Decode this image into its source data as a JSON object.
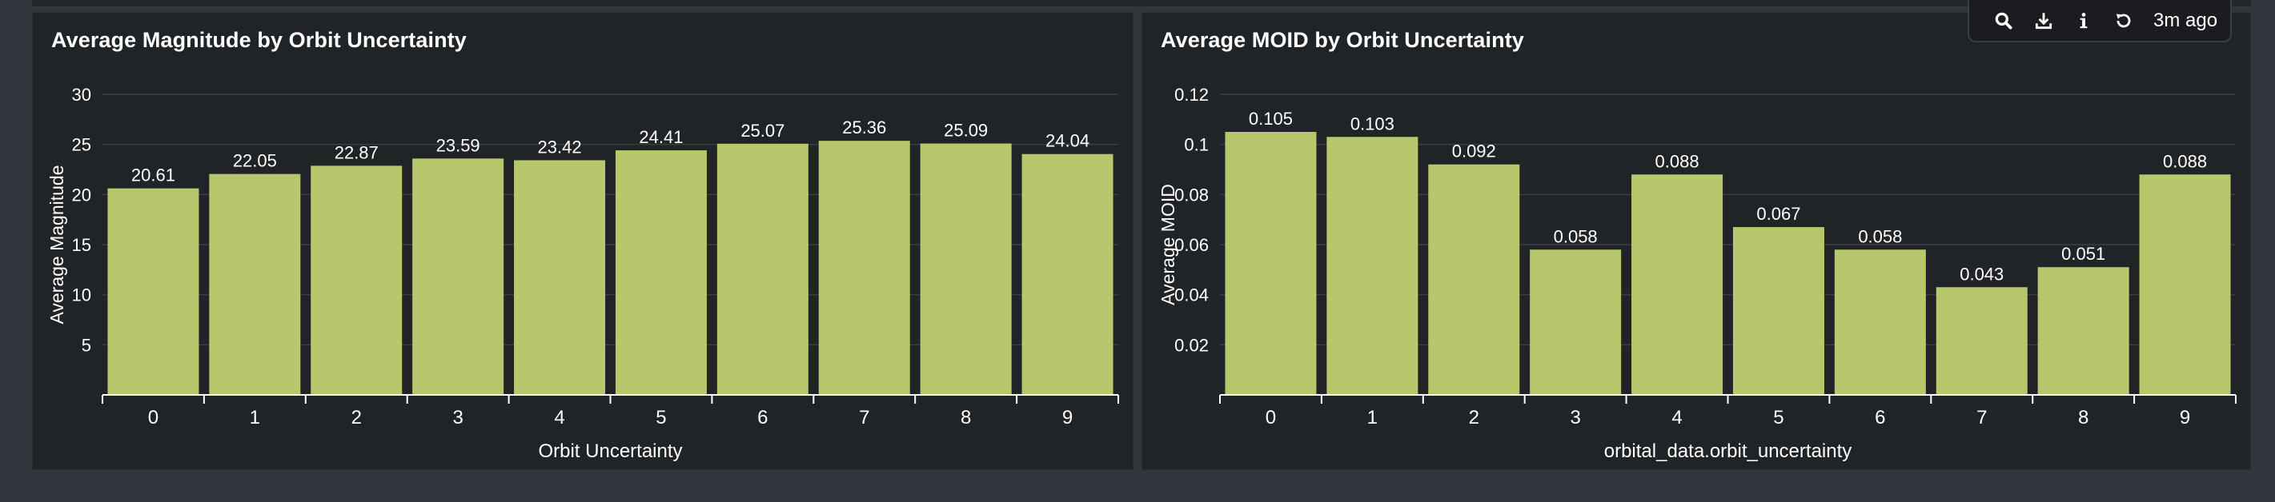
{
  "toolbar": {
    "time_label": "3m ago",
    "icons": [
      "search-icon",
      "download-icon",
      "info-icon",
      "refresh-icon"
    ]
  },
  "colors": {
    "bar": "#b8c66c",
    "gridline": "#3a3e44",
    "axis": "#ffffff",
    "panel_bg": "#212427",
    "page_bg": "#31353c"
  },
  "chart_data": [
    {
      "type": "bar",
      "title": "Average Magnitude by Orbit Uncertainty",
      "xlabel": "Orbit Uncertainty",
      "ylabel": "Average Magnitude",
      "categories": [
        "0",
        "1",
        "2",
        "3",
        "4",
        "5",
        "6",
        "7",
        "8",
        "9"
      ],
      "values": [
        20.61,
        22.05,
        22.87,
        23.59,
        23.42,
        24.41,
        25.07,
        25.36,
        25.09,
        24.04
      ],
      "data_labels": [
        "20.61",
        "22.05",
        "22.87",
        "23.59",
        "23.42",
        "24.41",
        "25.07",
        "25.36",
        "25.09",
        "24.04"
      ],
      "yticks": [
        5,
        10,
        15,
        20,
        25,
        30
      ],
      "ytick_labels": [
        "5",
        "10",
        "15",
        "20",
        "25",
        "30"
      ],
      "ylim": [
        0,
        30
      ],
      "grid": true,
      "legend": "none"
    },
    {
      "type": "bar",
      "title": "Average MOID by Orbit Uncertainty",
      "xlabel": "orbital_data.orbit_uncertainty",
      "ylabel": "Average MOID",
      "categories": [
        "0",
        "1",
        "2",
        "3",
        "4",
        "5",
        "6",
        "7",
        "8",
        "9"
      ],
      "values": [
        0.105,
        0.103,
        0.092,
        0.058,
        0.088,
        0.067,
        0.058,
        0.043,
        0.051,
        0.088
      ],
      "data_labels": [
        "0.105",
        "0.103",
        "0.092",
        "0.058",
        "0.088",
        "0.067",
        "0.058",
        "0.043",
        "0.051",
        "0.088"
      ],
      "yticks": [
        0.02,
        0.04,
        0.06,
        0.08,
        0.1,
        0.12
      ],
      "ytick_labels": [
        "0.02",
        "0.04",
        "0.06",
        "0.08",
        "0.1",
        "0.12"
      ],
      "ylim": [
        0,
        0.12
      ],
      "grid": true,
      "legend": "none"
    }
  ]
}
